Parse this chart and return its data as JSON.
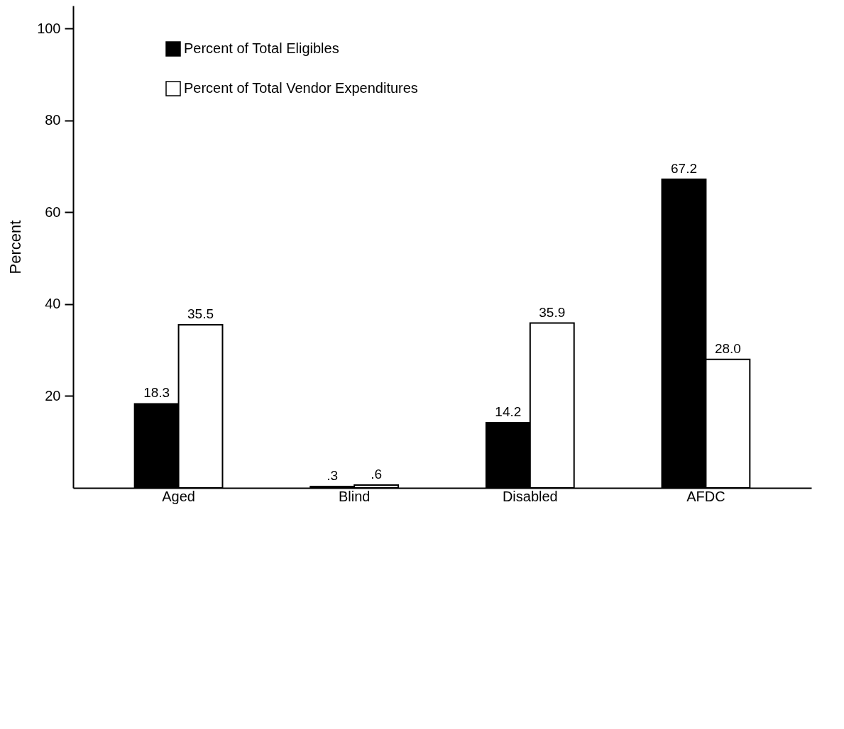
{
  "chart_data": {
    "type": "bar",
    "ylabel": "Percent",
    "categories": [
      "Aged",
      "Blind",
      "Disabled",
      "AFDC"
    ],
    "series": [
      {
        "name": "Percent of Total Eligibles",
        "color": "#000000",
        "values": [
          18.3,
          0.3,
          14.2,
          67.2
        ],
        "value_labels": [
          "18.3",
          ".3",
          "14.2",
          "67.2"
        ]
      },
      {
        "name": "Percent of Total Vendor Expenditures",
        "color": "#ffffff",
        "values": [
          35.5,
          0.6,
          35.9,
          28.0
        ],
        "value_labels": [
          "35.5",
          ".6",
          "35.9",
          "28.0"
        ]
      }
    ],
    "ylim": [
      0,
      105
    ],
    "yticks": [
      20,
      40,
      60,
      80,
      100
    ],
    "grid": false,
    "legend": "top left"
  }
}
